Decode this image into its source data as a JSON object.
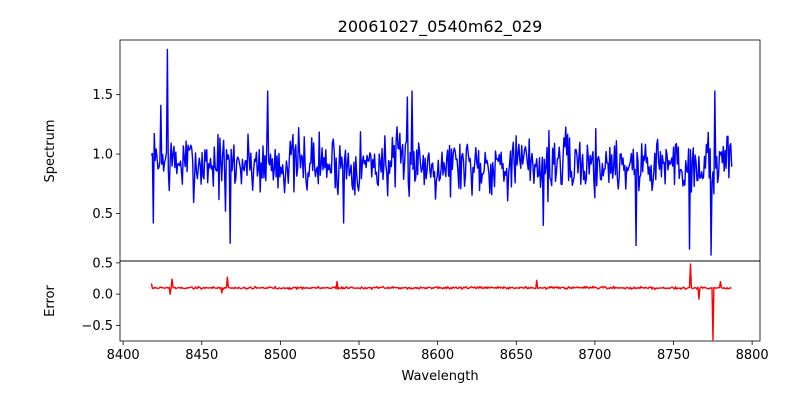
{
  "chart_data": [
    {
      "type": "line",
      "title": "20061027_0540m62_029",
      "ylabel": "Spectrum",
      "xlabel": "",
      "xlim": [
        8398,
        8805
      ],
      "ylim": [
        0.1,
        1.96
      ],
      "yticks": [
        0.5,
        1.0,
        1.5
      ],
      "ytick_labels": [
        "0.5",
        "1.0",
        "1.5"
      ],
      "grid": false,
      "series": [
        {
          "color": "#0000ff",
          "x_start": 8418,
          "x_end": 8787,
          "points": 620,
          "baseline": 0.92,
          "noise_amplitude": 0.16,
          "features": [
            {
              "x": 8419,
              "y": 0.42
            },
            {
              "x": 8428,
              "y": 1.88
            },
            {
              "x": 8424,
              "y": 1.41
            },
            {
              "x": 8465,
              "y": 0.52
            },
            {
              "x": 8468,
              "y": 0.25
            },
            {
              "x": 8492,
              "y": 1.53
            },
            {
              "x": 8540,
              "y": 0.42
            },
            {
              "x": 8581,
              "y": 1.48
            },
            {
              "x": 8584,
              "y": 1.53
            },
            {
              "x": 8667,
              "y": 0.4
            },
            {
              "x": 8726,
              "y": 0.23
            },
            {
              "x": 8760,
              "y": 0.2
            },
            {
              "x": 8774,
              "y": 0.15
            },
            {
              "x": 8776,
              "y": 1.53
            }
          ]
        }
      ]
    },
    {
      "type": "line",
      "title": "",
      "ylabel": "Error",
      "xlabel": "Wavelength",
      "xlim": [
        8398,
        8805
      ],
      "ylim": [
        -0.75,
        0.53
      ],
      "xticks": [
        8400,
        8450,
        8500,
        8550,
        8600,
        8650,
        8700,
        8750,
        8800
      ],
      "xtick_labels": [
        "8400",
        "8450",
        "8500",
        "8550",
        "8600",
        "8650",
        "8700",
        "8750",
        "8800"
      ],
      "yticks": [
        0.5,
        0.0,
        -0.5
      ],
      "ytick_labels": [
        "0.5",
        "0.0",
        "−0.5"
      ],
      "grid": false,
      "series": [
        {
          "color": "#ff0000",
          "x_start": 8418,
          "x_end": 8787,
          "points": 620,
          "baseline": 0.1,
          "noise_amplitude": 0.012,
          "features": [
            {
              "x": 8418,
              "y": 0.17
            },
            {
              "x": 8430,
              "y": 0.0
            },
            {
              "x": 8431,
              "y": 0.24
            },
            {
              "x": 8466,
              "y": 0.27
            },
            {
              "x": 8463,
              "y": 0.02
            },
            {
              "x": 8536,
              "y": 0.2
            },
            {
              "x": 8663,
              "y": 0.22
            },
            {
              "x": 8761,
              "y": 0.48
            },
            {
              "x": 8766,
              "y": -0.08
            },
            {
              "x": 8775,
              "y": -0.73
            },
            {
              "x": 8780,
              "y": 0.2
            }
          ]
        }
      ]
    }
  ]
}
